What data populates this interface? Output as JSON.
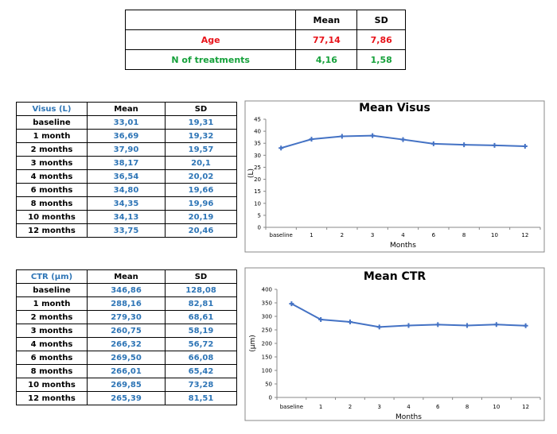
{
  "summary": {
    "headers": [
      "",
      "Mean",
      "SD"
    ],
    "rows": [
      {
        "label": "Age",
        "mean": "77,14",
        "sd": "7,86"
      },
      {
        "label": "N of treatments",
        "mean": "4,16",
        "sd": "1,58"
      }
    ]
  },
  "visus_table": {
    "headers": [
      "Visus (L)",
      "Mean",
      "SD"
    ],
    "rows": [
      [
        "baseline",
        "33,01",
        "19,31"
      ],
      [
        "1 month",
        "36,69",
        "19,32"
      ],
      [
        "2 months",
        "37,90",
        "19,57"
      ],
      [
        "3 months",
        "38,17",
        "20,1"
      ],
      [
        "4 months",
        "36,54",
        "20,02"
      ],
      [
        "6 months",
        "34,80",
        "19,66"
      ],
      [
        "8 months",
        "34,35",
        "19,96"
      ],
      [
        "10 months",
        "34,13",
        "20,19"
      ],
      [
        "12 months",
        "33,75",
        "20,46"
      ]
    ]
  },
  "ctr_table": {
    "headers": [
      "CTR (µm)",
      "Mean",
      "SD"
    ],
    "rows": [
      [
        "baseline",
        "346,86",
        "128,08"
      ],
      [
        "1 month",
        "288,16",
        "82,81"
      ],
      [
        "2 months",
        "279,30",
        "68,61"
      ],
      [
        "3 months",
        "260,75",
        "58,19"
      ],
      [
        "4 months",
        "266,32",
        "56,72"
      ],
      [
        "6 months",
        "269,50",
        "66,08"
      ],
      [
        "8 months",
        "266,01",
        "65,42"
      ],
      [
        "10 months",
        "269,85",
        "73,28"
      ],
      [
        "12 months",
        "265,39",
        "81,51"
      ]
    ]
  },
  "colors": {
    "blue": "#2E75B6",
    "red": "#E8141B",
    "green": "#16A13B",
    "line": "#4472C4"
  },
  "chart_data": [
    {
      "type": "line",
      "title": "Mean Visus",
      "xlabel": "Months",
      "ylabel": "(L)",
      "categories": [
        "baseline",
        "1",
        "2",
        "3",
        "4",
        "6",
        "8",
        "10",
        "12"
      ],
      "values": [
        33.01,
        36.69,
        37.9,
        38.17,
        36.54,
        34.8,
        34.35,
        34.13,
        33.75
      ],
      "ylim": [
        0,
        45
      ],
      "yticks": [
        0,
        5,
        10,
        15,
        20,
        25,
        30,
        35,
        40,
        45
      ],
      "grid": false
    },
    {
      "type": "line",
      "title": "Mean CTR",
      "xlabel": "Months",
      "ylabel": "(µm)",
      "categories": [
        "baseline",
        "1",
        "2",
        "3",
        "4",
        "6",
        "8",
        "10",
        "12"
      ],
      "values": [
        346.86,
        288.16,
        279.3,
        260.75,
        266.32,
        269.5,
        266.01,
        269.85,
        265.39
      ],
      "ylim": [
        0,
        400
      ],
      "yticks": [
        0,
        50,
        100,
        150,
        200,
        250,
        300,
        350,
        400
      ],
      "grid": false
    }
  ]
}
